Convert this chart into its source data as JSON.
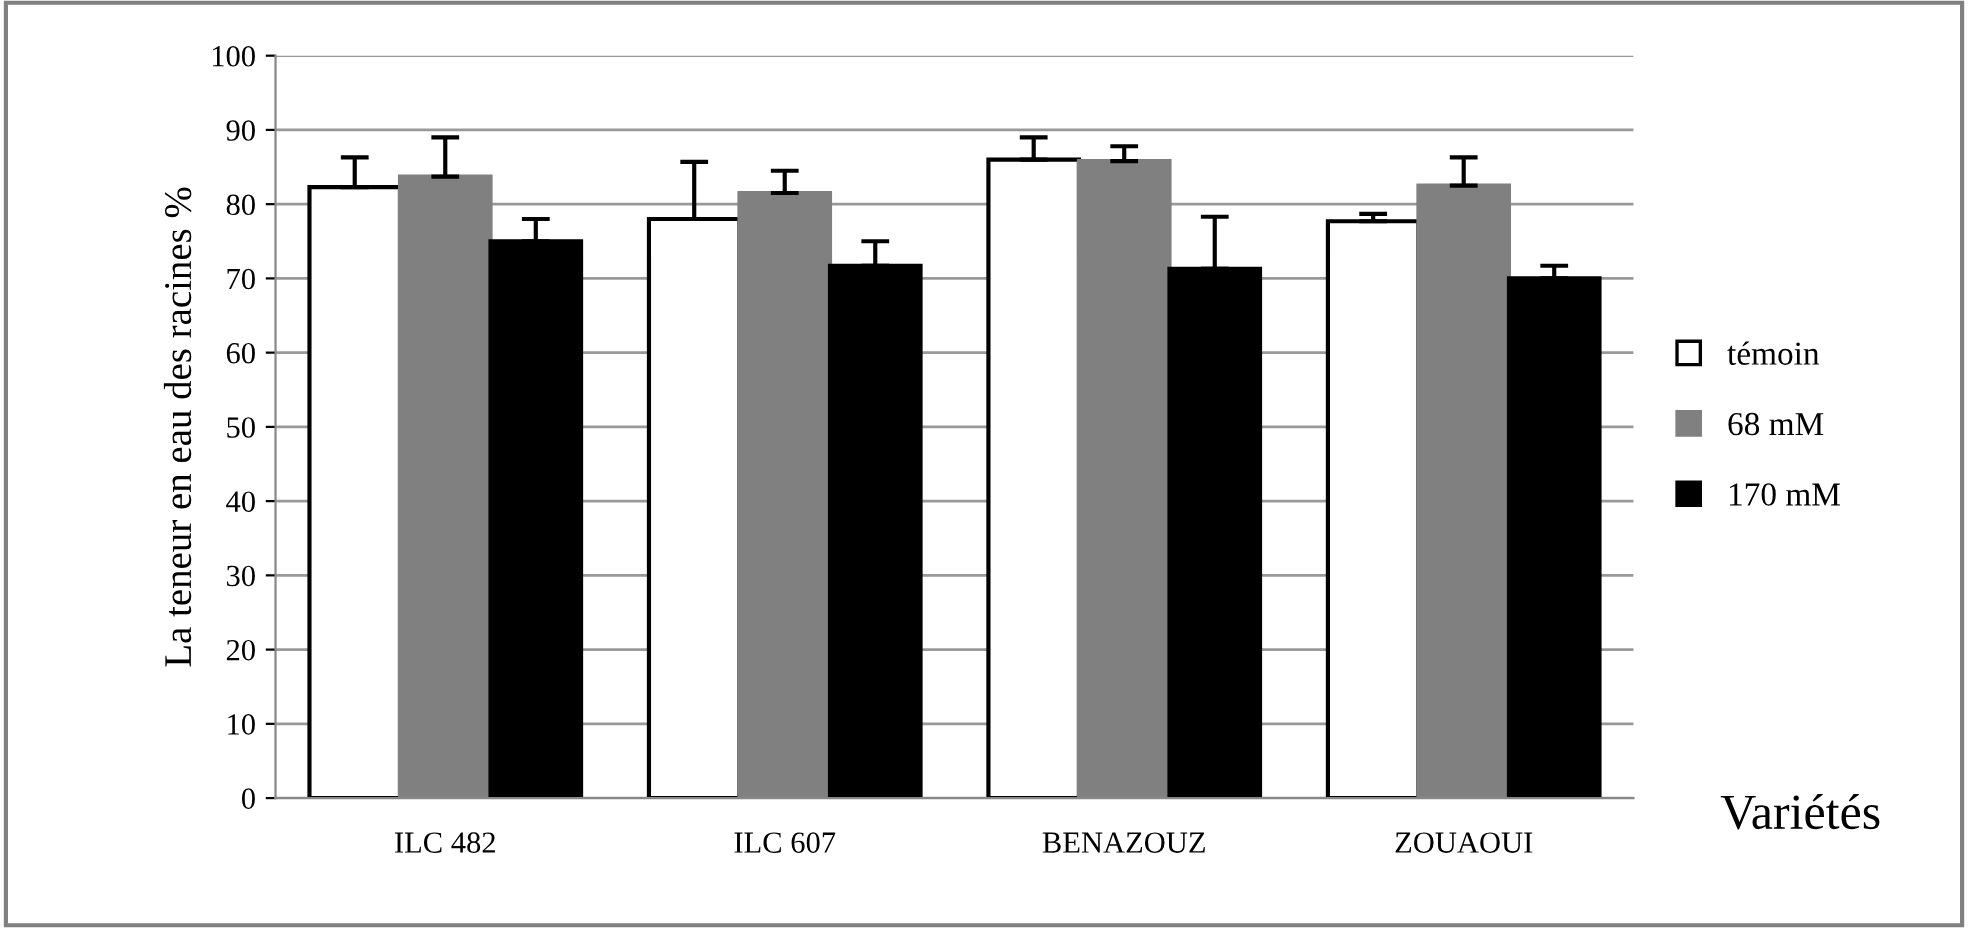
{
  "chart_data": {
    "type": "bar",
    "ylabel": "La teneur en eau des racines %",
    "xlabel": "Variétés",
    "categories": [
      "ILC 482",
      "ILC 607",
      "BENAZOUZ",
      "ZOUAOUI"
    ],
    "series": [
      {
        "name": "témoin",
        "color": "#ffffff",
        "values": [
          82.3,
          78,
          86,
          77.7
        ],
        "errors": [
          [
            82.3,
            86.3
          ],
          [
            78,
            85.7
          ],
          [
            86,
            89
          ],
          [
            77.7,
            78.7
          ]
        ]
      },
      {
        "name": "68 mM",
        "color": "#808080",
        "values": [
          83.7,
          81.5,
          85.8,
          82.5
        ],
        "errors": [
          [
            83.7,
            89
          ],
          [
            81.5,
            84.5
          ],
          [
            85.8,
            87.8
          ],
          [
            82.5,
            86.3
          ]
        ]
      },
      {
        "name": "170 mM",
        "color": "#000000",
        "values": [
          75,
          71.7,
          71.3,
          70
        ],
        "errors": [
          [
            75,
            78
          ],
          [
            71.7,
            75
          ],
          [
            71.3,
            78.3
          ],
          [
            70,
            71.7
          ]
        ]
      }
    ],
    "ylim": [
      0,
      100
    ],
    "yticks": [
      0,
      10,
      20,
      30,
      40,
      50,
      60,
      70,
      80,
      90,
      100
    ],
    "grid": "y",
    "legend": "right"
  }
}
